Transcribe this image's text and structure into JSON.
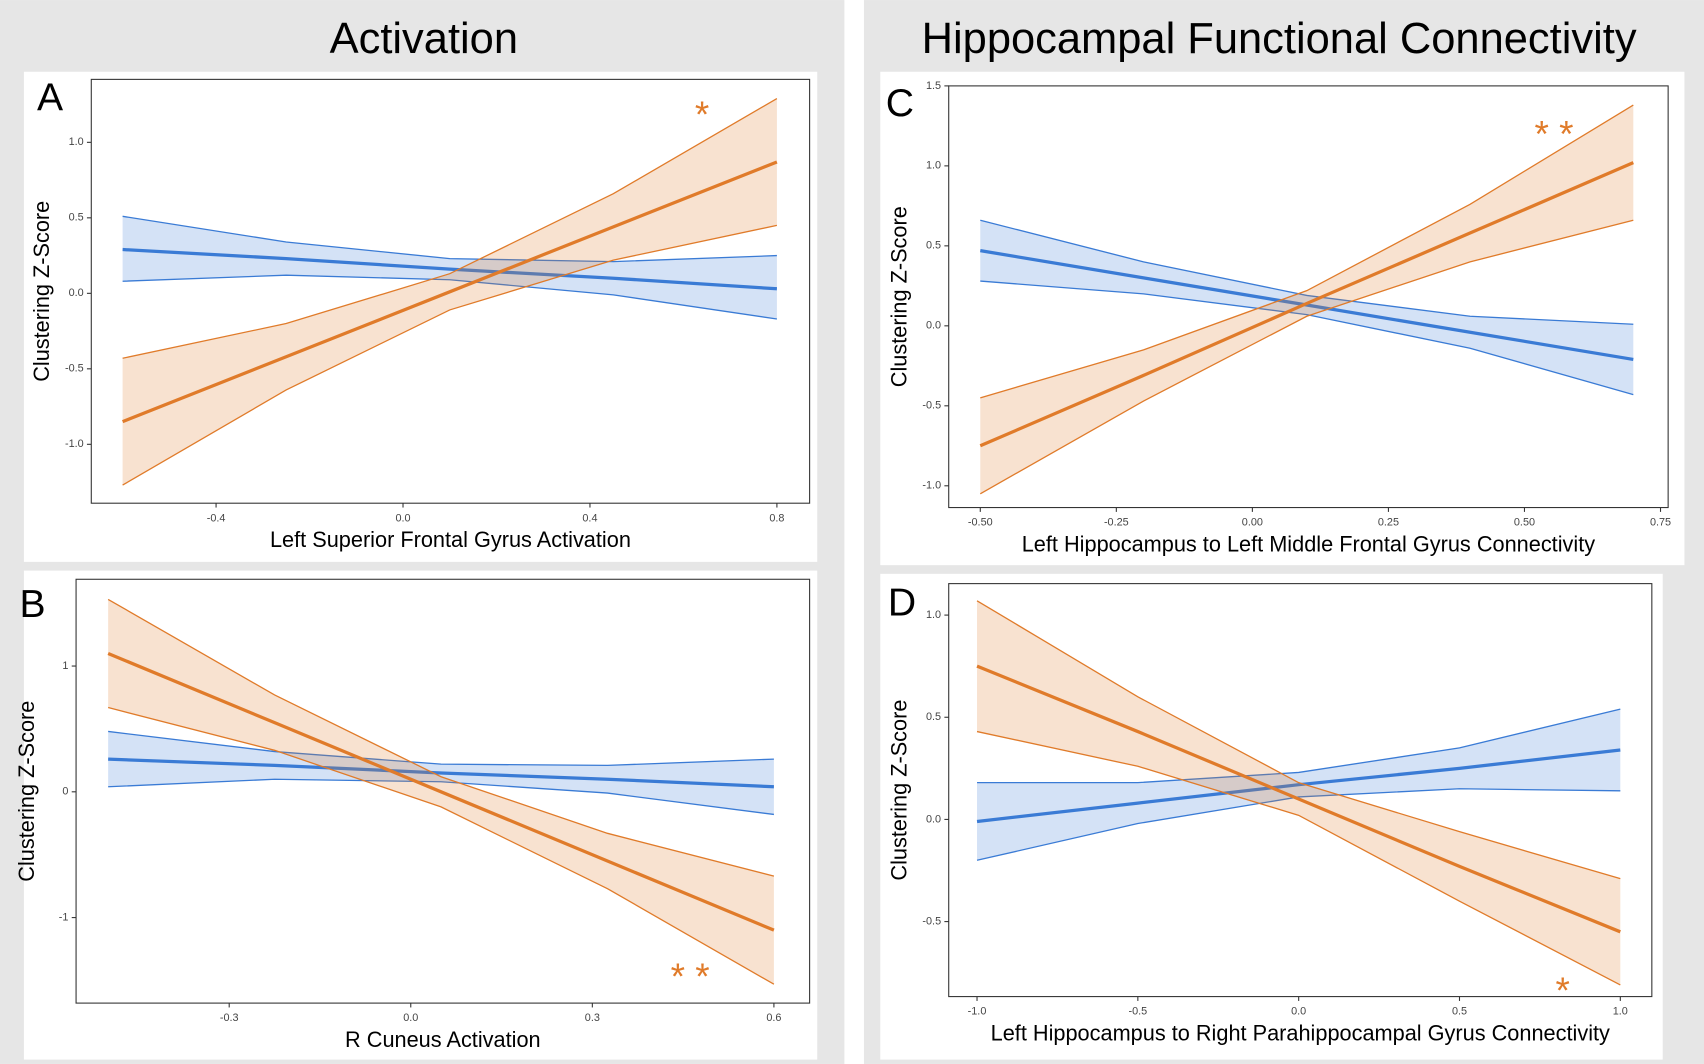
{
  "headings": [
    "Activation",
    "Hippocampal Functional Connectivity"
  ],
  "chart_data": [
    {
      "type": "line",
      "label": "A",
      "annotation": "*",
      "xlabel": "Left Superior Frontal Gyrus Activation",
      "ylabel": "Clustering Z-Score",
      "x": [
        -0.6,
        -0.25,
        0.1,
        0.45,
        0.8
      ],
      "xlim": [
        -0.667,
        0.87
      ],
      "ylim": [
        -1.39,
        1.417
      ],
      "xticks": [
        -0.4,
        {
          "value": 0,
          "label": "0.0"
        },
        0.4,
        0.8
      ],
      "yticks": [
        {
          "value": -1,
          "label": "-1.0"
        },
        -0.5,
        {
          "value": 0,
          "label": "0.0"
        },
        0.5,
        {
          "value": 1,
          "label": "1.0"
        }
      ],
      "series": [
        {
          "color": "#3a7bd5",
          "values": [
            0.29,
            0.23,
            0.16,
            0.1,
            0.03
          ],
          "lower": [
            0.08,
            0.12,
            0.09,
            -0.01,
            -0.17
          ],
          "upper": [
            0.51,
            0.34,
            0.23,
            0.21,
            0.25
          ]
        },
        {
          "color": "#e07b2a",
          "values": [
            -0.85,
            -0.42,
            0.01,
            0.44,
            0.87
          ],
          "lower": [
            -1.27,
            -0.64,
            -0.11,
            0.22,
            0.45
          ],
          "upper": [
            -0.43,
            -0.2,
            0.13,
            0.66,
            1.29
          ]
        }
      ]
    },
    {
      "type": "line",
      "label": "B",
      "annotation": "* *",
      "xlabel": "R Cuneus Activation",
      "ylabel": "Clustering Z-Score",
      "x": [
        -0.5,
        -0.225,
        0.05,
        0.325,
        0.6
      ],
      "xlim": [
        -0.553,
        0.659
      ],
      "ylim": [
        -1.68,
        1.69
      ],
      "xticks": [
        -0.3,
        {
          "value": 0,
          "label": "0.0"
        },
        0.3,
        0.6
      ],
      "yticks": [
        -1,
        0,
        1
      ],
      "series": [
        {
          "color": "#3a7bd5",
          "values": [
            0.26,
            0.21,
            0.15,
            0.1,
            0.04
          ],
          "lower": [
            0.04,
            0.1,
            0.08,
            -0.01,
            -0.18
          ],
          "upper": [
            0.48,
            0.32,
            0.22,
            0.21,
            0.26
          ]
        },
        {
          "color": "#e07b2a",
          "values": [
            1.1,
            0.55,
            0,
            -0.55,
            -1.1
          ],
          "lower": [
            0.67,
            0.33,
            -0.12,
            -0.77,
            -1.53
          ],
          "upper": [
            1.53,
            0.77,
            0.12,
            -0.33,
            -0.67
          ]
        }
      ]
    },
    {
      "type": "line",
      "label": "C",
      "annotation": "* *",
      "xlabel": "Left Hippocampus to Left Middle Frontal Gyrus Connectivity",
      "ylabel": "Clustering Z-Score",
      "x": [
        -0.5,
        -0.2,
        0.1,
        0.4,
        0.7
      ],
      "xlim": [
        -0.558,
        0.764
      ],
      "ylim": [
        -1.136,
        1.5
      ],
      "xticks": [
        {
          "value": -0.5,
          "label": "-0.50"
        },
        -0.25,
        {
          "value": 0,
          "label": "0.00"
        },
        0.25,
        {
          "value": 0.5,
          "label": "0.50"
        },
        0.75
      ],
      "yticks": [
        {
          "value": -1,
          "label": "-1.0"
        },
        -0.5,
        {
          "value": 0,
          "label": "0.0"
        },
        0.5,
        {
          "value": 1,
          "label": "1.0"
        },
        1.5
      ],
      "series": [
        {
          "color": "#3a7bd5",
          "values": [
            0.47,
            0.3,
            0.13,
            -0.04,
            -0.21
          ],
          "lower": [
            0.28,
            0.2,
            0.07,
            -0.14,
            -0.43
          ],
          "upper": [
            0.66,
            0.4,
            0.19,
            0.06,
            0.01
          ]
        },
        {
          "color": "#e07b2a",
          "values": [
            -0.75,
            -0.31,
            0.14,
            0.58,
            1.02
          ],
          "lower": [
            -1.05,
            -0.47,
            0.06,
            0.4,
            0.66
          ],
          "upper": [
            -0.45,
            -0.15,
            0.22,
            0.76,
            1.38
          ]
        }
      ]
    },
    {
      "type": "line",
      "label": "D",
      "annotation": "*",
      "xlabel": "Left Hippocampus to Right Parahippocampal Gyrus Connectivity",
      "ylabel": "Clustering Z-Score",
      "x": [
        -1,
        -0.5,
        0,
        0.5,
        1
      ],
      "xlim": [
        -1.088,
        1.098
      ],
      "ylim": [
        -0.867,
        1.154
      ],
      "xticks": [
        {
          "value": -1,
          "label": "-1.0"
        },
        -0.5,
        {
          "value": 0,
          "label": "0.0"
        },
        0.5,
        {
          "value": 1,
          "label": "1.0"
        }
      ],
      "yticks": [
        -0.5,
        {
          "value": 0,
          "label": "0.0"
        },
        0.5,
        {
          "value": 1,
          "label": "1.0"
        }
      ],
      "series": [
        {
          "color": "#3a7bd5",
          "values": [
            -0.01,
            0.08,
            0.17,
            0.25,
            0.34
          ],
          "lower": [
            -0.2,
            -0.02,
            0.11,
            0.15,
            0.14
          ],
          "upper": [
            0.18,
            0.18,
            0.23,
            0.35,
            0.54
          ]
        },
        {
          "color": "#e07b2a",
          "values": [
            0.75,
            0.43,
            0.1,
            -0.23,
            -0.55
          ],
          "lower": [
            0.43,
            0.26,
            0.02,
            -0.4,
            -0.81
          ],
          "upper": [
            1.07,
            0.6,
            0.18,
            -0.06,
            -0.29
          ]
        }
      ]
    }
  ]
}
